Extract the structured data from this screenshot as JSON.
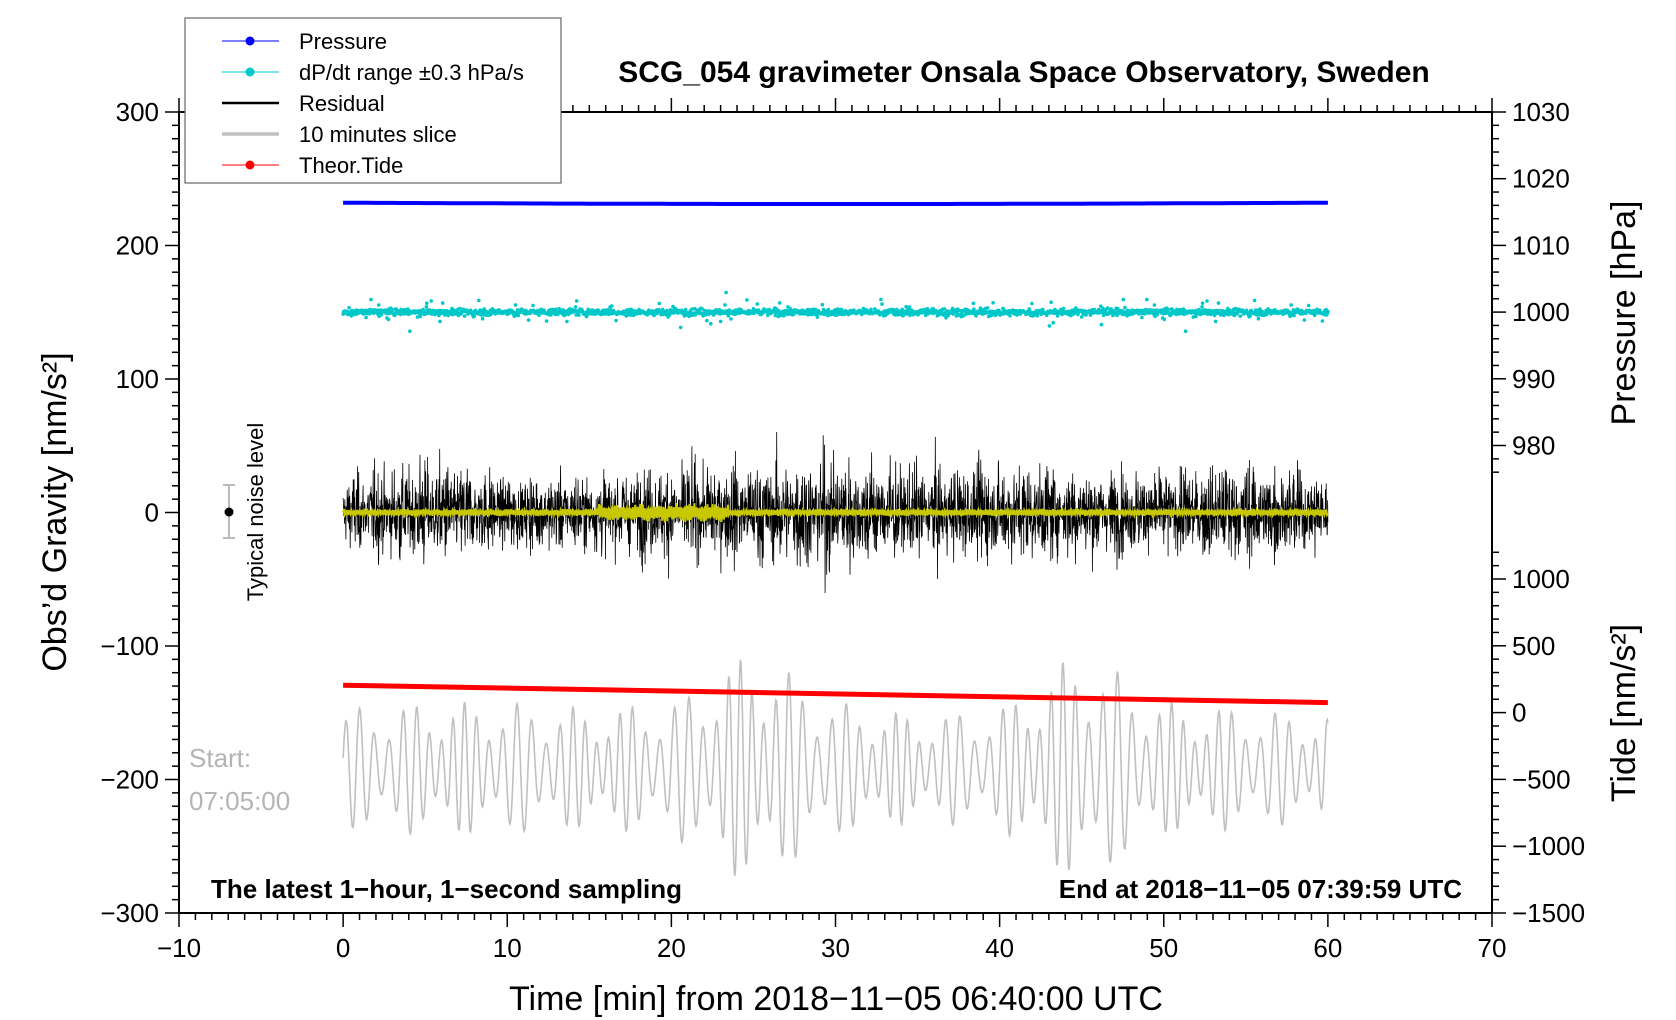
{
  "chart_data": {
    "type": "line",
    "title": "SCG_054 gravimeter Onsala Space Observatory, Sweden",
    "xlabel": "Time [min] from 2018−11−05 06:40:00 UTC",
    "ylabel_left": "Obs’d Gravity [nm/s²]",
    "ylabel_right_pressure": "Pressure [hPa]",
    "ylabel_right_tide": "Tide [nm/s²]",
    "xlim": [
      -10,
      70
    ],
    "ylim_left": [
      -300,
      300
    ],
    "x_ticks": [
      "−10",
      "0",
      "10",
      "20",
      "30",
      "40",
      "50",
      "60",
      "70"
    ],
    "x_tick_values": [
      -10,
      0,
      10,
      20,
      30,
      40,
      50,
      60,
      70
    ],
    "y_left_ticks": [
      "−300",
      "−200",
      "−100",
      "0",
      "100",
      "200",
      "300"
    ],
    "y_left_tick_values": [
      -300,
      -200,
      -100,
      0,
      100,
      200,
      300
    ],
    "pressure_ticks": [
      "980",
      "990",
      "1000",
      "1010",
      "1020",
      "1030"
    ],
    "pressure_tick_values": [
      980,
      990,
      1000,
      1010,
      1020,
      1030
    ],
    "tide_ticks": [
      "1000",
      "500",
      "0",
      "−500",
      "−1000",
      "−1500"
    ],
    "tide_tick_values": [
      1000,
      500,
      0,
      -500,
      -1000,
      -1500
    ],
    "legend": {
      "placement": "top-left",
      "entries": [
        {
          "label": "Pressure",
          "color": "#0000ff",
          "marker": true
        },
        {
          "label": "dP/dt range ±0.3 hPa/s",
          "color": "#00c8c8",
          "marker": true
        },
        {
          "label": "Residual",
          "color": "#000000",
          "marker": false
        },
        {
          "label": "10 minutes slice",
          "color": "#c0c0c0",
          "marker": false
        },
        {
          "label": "Theor.Tide",
          "color": "#ff0000",
          "marker": true
        }
      ]
    },
    "series": [
      {
        "name": "Pressure",
        "unit": "hPa",
        "x_range": [
          0,
          60
        ],
        "values_start_end": [
          1016.4,
          1016.4
        ],
        "mid_dip": 1016.2,
        "color": "#0000ff"
      },
      {
        "name": "dP/dt range",
        "unit": "hPa (plotted)",
        "x_range": [
          0,
          60
        ],
        "center": 1000,
        "spread": 2.5,
        "color": "#00c8c8"
      },
      {
        "name": "Residual",
        "unit": "nm/s²",
        "x_range": [
          0,
          60
        ],
        "center": 0,
        "amplitude_envelope_per_5min": [
          55,
          85,
          60,
          60,
          75,
          80,
          95,
          70,
          80,
          70,
          65,
          80,
          60
        ],
        "color": "#000000"
      },
      {
        "name": "Residual filtered",
        "unit": "nm/s²",
        "x_range": [
          0,
          60
        ],
        "center": 0,
        "amplitude": 3,
        "burst_at_min": [
          16,
          23
        ],
        "color": "#c8c800"
      },
      {
        "name": "10 minutes slice",
        "unit": "nm/s² (tide axis)",
        "x_range": [
          0,
          60
        ],
        "center": -420,
        "amplitude_envelope_per_5min": [
          450,
          500,
          500,
          450,
          500,
          900,
          500,
          400,
          450,
          900,
          500,
          450,
          400
        ],
        "color": "#c0c0c0"
      },
      {
        "name": "Theor.Tide",
        "unit": "nm/s²",
        "x_range": [
          0,
          60
        ],
        "values_start_end": [
          205,
          75
        ],
        "color": "#ff0000"
      }
    ],
    "annotations": {
      "noise_label": "Typical noise level",
      "noise_bar": [
        -20,
        20
      ],
      "start_label": "Start:",
      "start_time": "07:05:00",
      "left_note": "The latest 1−hour, 1−second sampling",
      "right_note": "End at 2018−11−05 07:39:59 UTC"
    },
    "grid": false
  }
}
